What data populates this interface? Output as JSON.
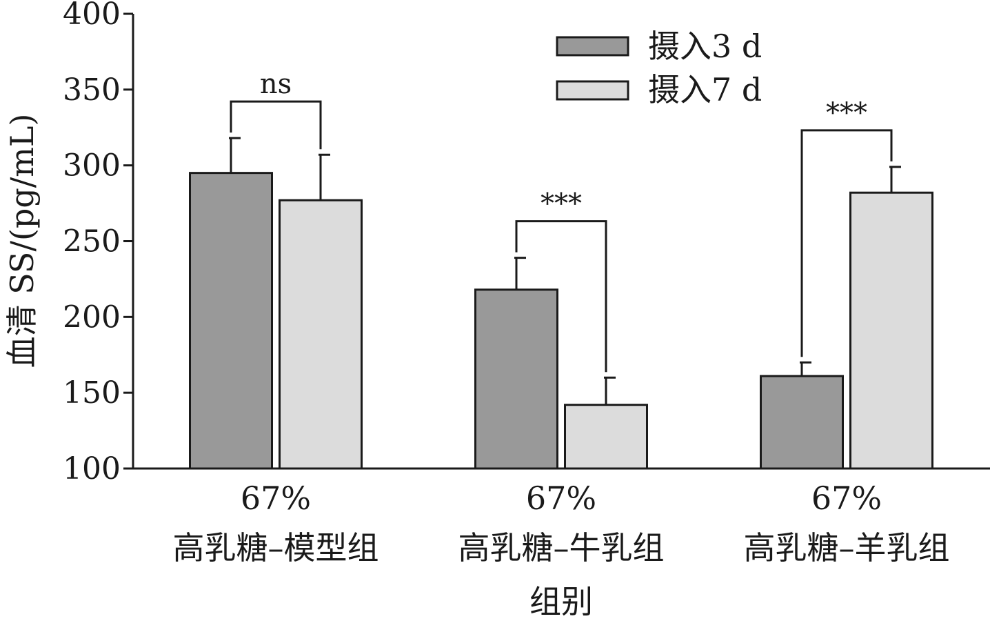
{
  "chart_data": {
    "type": "bar",
    "xlabel": "组别",
    "ylabel": "血清 SS/(pg/mL)",
    "ylim": [
      100,
      400
    ],
    "yticks": [
      100,
      150,
      200,
      250,
      300,
      350,
      400
    ],
    "grid": false,
    "legend_position": "top-right",
    "categories": [
      {
        "line1": "67%",
        "line2": "高乳糖–模型组"
      },
      {
        "line1": "67%",
        "line2": "高乳糖–牛乳组"
      },
      {
        "line1": "67%",
        "line2": "高乳糖–羊乳组"
      }
    ],
    "series": [
      {
        "name": "摄入3 d",
        "color": "#999999",
        "values": [
          295,
          218,
          161
        ],
        "errors": [
          23,
          21,
          9
        ]
      },
      {
        "name": "摄入7 d",
        "color": "#dcdcdc",
        "values": [
          277,
          142,
          282
        ],
        "errors": [
          30,
          18,
          17
        ]
      }
    ],
    "significance": [
      "ns",
      "***",
      "***"
    ]
  }
}
